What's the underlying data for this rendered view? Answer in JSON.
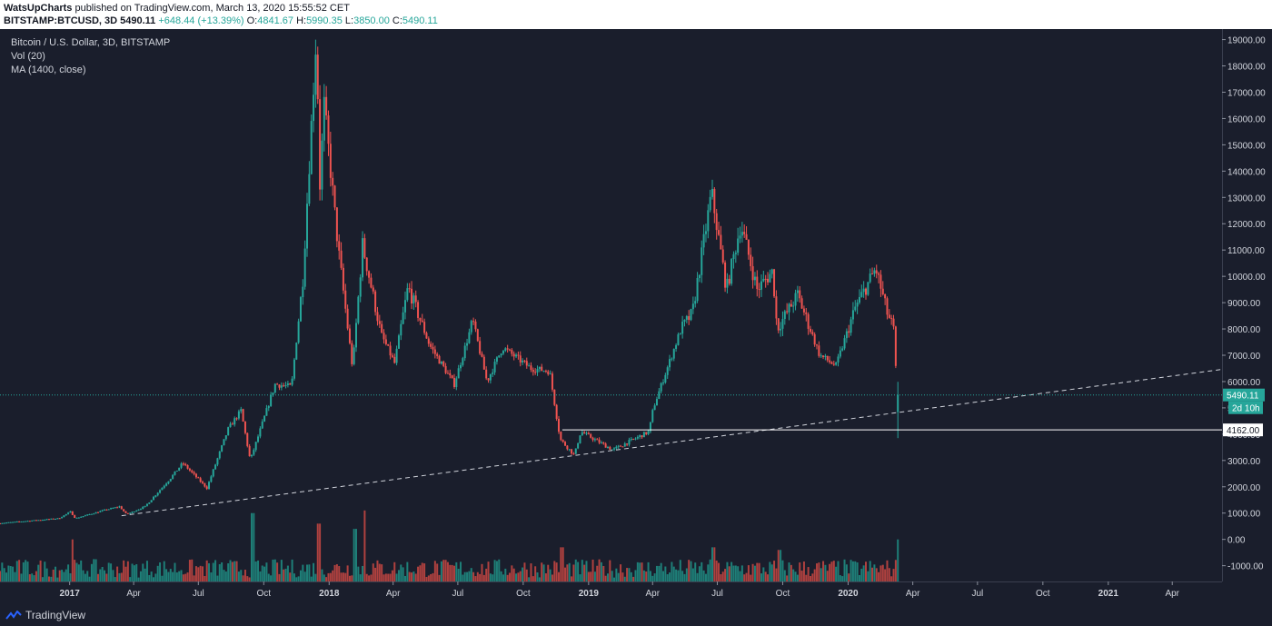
{
  "header": {
    "author": "WatsUpCharts",
    "published_text": "published on TradingView.com, March 13, 2020 15:55:52 CET",
    "symbol_line": "BITSTAMP:BTCUSD, 3D",
    "last": "5490.11",
    "change": "+648.44 (+13.39%)",
    "o_label": "O:",
    "o_value": "4841.67",
    "h_label": "H:",
    "h_value": "5990.35",
    "l_label": "L:",
    "l_value": "3850.00",
    "c_label": "C:",
    "c_value": "5490.11"
  },
  "legend": {
    "title": "Bitcoin / U.S. Dollar, 3D, BITSTAMP",
    "vol": "Vol (20)",
    "ma": "MA (1400, close)"
  },
  "footer": {
    "brand": "TradingView"
  },
  "colors": {
    "background": "#1a1e2c",
    "up": "#26a69a",
    "down": "#ef5350",
    "vol_up": "#1e7f78",
    "vol_down": "#b0413f",
    "axis_text": "#d1d4dc",
    "price_tag": "#26a69a"
  },
  "chart_data": {
    "type": "candlestick",
    "title": "Bitcoin / U.S. Dollar, 3D, BITSTAMP",
    "ylim": [
      -1600,
      19400
    ],
    "y_ticks": [
      "19000.00",
      "18000.00",
      "17000.00",
      "16000.00",
      "15000.00",
      "14000.00",
      "13000.00",
      "12000.00",
      "11000.00",
      "10000.00",
      "9000.00",
      "8000.00",
      "7000.00",
      "6000.00",
      "5000.00",
      "4000.00",
      "3000.00",
      "2000.00",
      "1000.00",
      "0.00",
      "-1000.00"
    ],
    "y_tick_values": [
      19000,
      18000,
      17000,
      16000,
      15000,
      14000,
      13000,
      12000,
      11000,
      10000,
      9000,
      8000,
      7000,
      6000,
      5000,
      4000,
      3000,
      2000,
      1000,
      0,
      -1000
    ],
    "x_ticks": [
      "2017",
      "Apr",
      "Jul",
      "Oct",
      "2018",
      "Apr",
      "Jul",
      "Oct",
      "2019",
      "Apr",
      "Jul",
      "Oct",
      "2020",
      "Apr",
      "Jul",
      "Oct",
      "2021",
      "Apr"
    ],
    "x_tick_dates": [
      "2017-01-01",
      "2017-04-01",
      "2017-07-01",
      "2017-10-01",
      "2018-01-01",
      "2018-04-01",
      "2018-07-01",
      "2018-10-01",
      "2019-01-01",
      "2019-04-01",
      "2019-07-01",
      "2019-10-01",
      "2020-01-01",
      "2020-04-01",
      "2020-07-01",
      "2020-10-01",
      "2021-01-01",
      "2021-04-01"
    ],
    "x_range": [
      "2016-09-25",
      "2021-06-10"
    ],
    "price_anchors": [
      [
        "2016-09-25",
        610
      ],
      [
        "2016-12-20",
        800
      ],
      [
        "2017-01-05",
        1050
      ],
      [
        "2017-01-12",
        800
      ],
      [
        "2017-02-20",
        1100
      ],
      [
        "2017-03-15",
        1250
      ],
      [
        "2017-03-25",
        950
      ],
      [
        "2017-04-20",
        1250
      ],
      [
        "2017-05-25",
        2300
      ],
      [
        "2017-06-12",
        2900
      ],
      [
        "2017-07-16",
        1950
      ],
      [
        "2017-08-15",
        4200
      ],
      [
        "2017-09-02",
        4900
      ],
      [
        "2017-09-15",
        3000
      ],
      [
        "2017-10-20",
        5900
      ],
      [
        "2017-11-12",
        5800
      ],
      [
        "2017-11-28",
        9900
      ],
      [
        "2017-12-17",
        19200
      ],
      [
        "2017-12-22",
        13500
      ],
      [
        "2017-12-28",
        16500
      ],
      [
        "2018-01-17",
        11000
      ],
      [
        "2018-02-06",
        6500
      ],
      [
        "2018-02-20",
        11200
      ],
      [
        "2018-03-18",
        7800
      ],
      [
        "2018-04-06",
        6700
      ],
      [
        "2018-04-25",
        9600
      ],
      [
        "2018-05-25",
        7400
      ],
      [
        "2018-06-29",
        5900
      ],
      [
        "2018-07-25",
        8300
      ],
      [
        "2018-08-14",
        6000
      ],
      [
        "2018-09-05",
        7300
      ],
      [
        "2018-10-15",
        6500
      ],
      [
        "2018-11-10",
        6400
      ],
      [
        "2018-11-25",
        3800
      ],
      [
        "2018-12-15",
        3200
      ],
      [
        "2018-12-24",
        4100
      ],
      [
        "2019-02-07",
        3400
      ],
      [
        "2019-03-30",
        4100
      ],
      [
        "2019-04-05",
        5000
      ],
      [
        "2019-05-14",
        8000
      ],
      [
        "2019-05-30",
        8600
      ],
      [
        "2019-06-26",
        13200
      ],
      [
        "2019-07-17",
        9500
      ],
      [
        "2019-08-06",
        12000
      ],
      [
        "2019-08-29",
        9500
      ],
      [
        "2019-09-20",
        10200
      ],
      [
        "2019-09-26",
        8000
      ],
      [
        "2019-10-25",
        9300
      ],
      [
        "2019-11-25",
        7000
      ],
      [
        "2019-12-18",
        6600
      ],
      [
        "2020-01-14",
        8800
      ],
      [
        "2020-02-12",
        10300
      ],
      [
        "2020-02-28",
        8600
      ],
      [
        "2020-03-08",
        8000
      ],
      [
        "2020-03-13",
        5490
      ]
    ],
    "trendline": {
      "points": [
        [
          "2017-03-15",
          900
        ],
        [
          "2018-12-15",
          3200
        ]
      ],
      "style": "dashed"
    },
    "horizontal_levels": [
      {
        "value": 5490.11,
        "label": "5490.11",
        "style": "dotted",
        "color": "#26a69a"
      },
      {
        "value": 4162.0,
        "label": "4162.00",
        "style": "solid",
        "color": "#ffffff",
        "from": "2018-11-25"
      }
    ],
    "countdown_label": "2d 10h",
    "volume_spikes": [
      [
        "2017-01-05",
        1600
      ],
      [
        "2017-09-15",
        2600
      ],
      [
        "2017-12-17",
        2200
      ],
      [
        "2018-02-06",
        2000
      ],
      [
        "2018-02-20",
        2700
      ],
      [
        "2018-11-25",
        1300
      ],
      [
        "2019-06-26",
        1300
      ],
      [
        "2019-09-26",
        1200
      ],
      [
        "2020-03-13",
        1600
      ]
    ]
  }
}
